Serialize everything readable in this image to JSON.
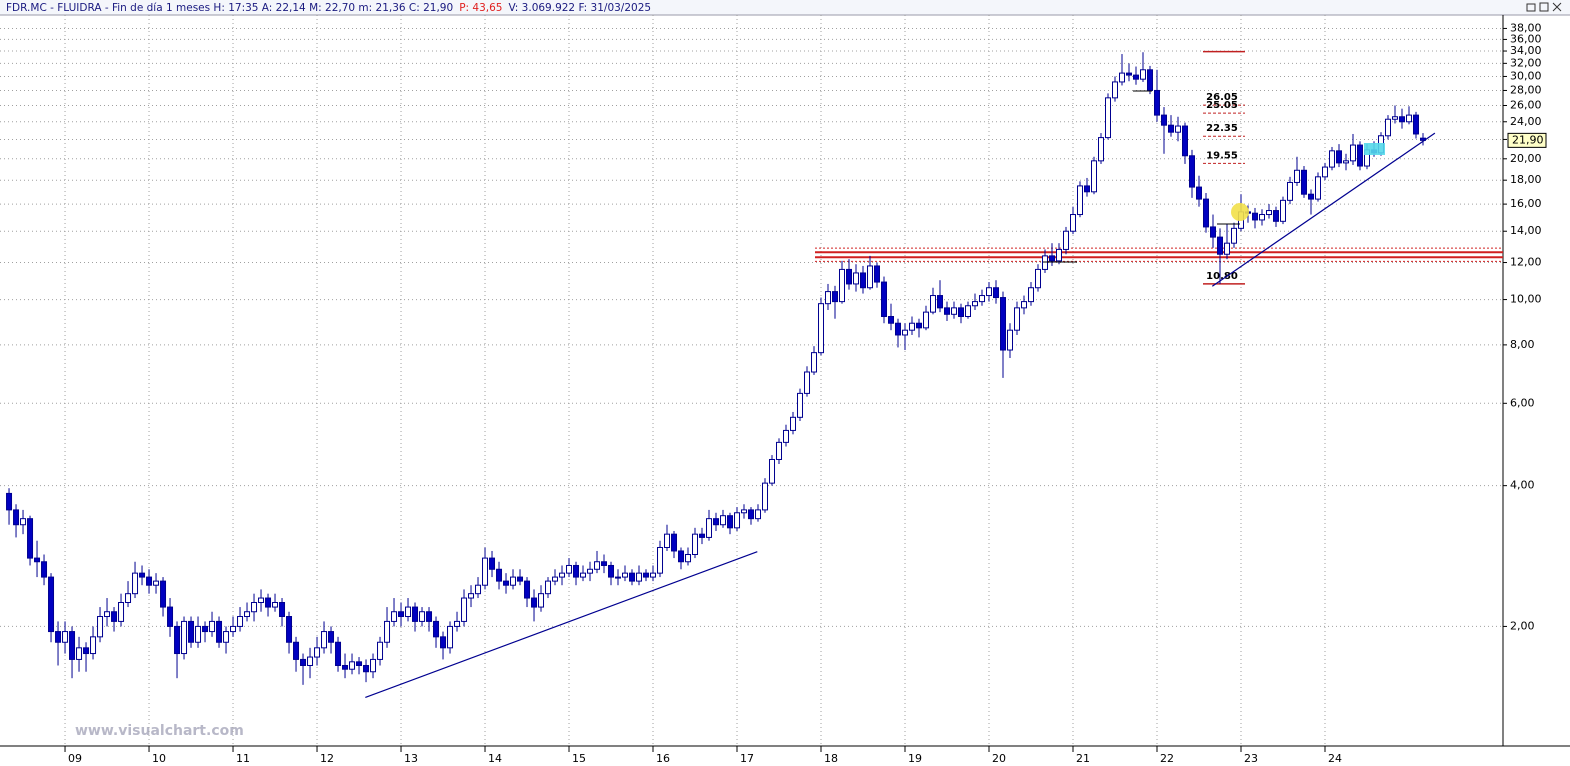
{
  "chart_data": {
    "type": "candlestick",
    "header": [
      "FDR.MC - FLUIDRA - Fin de día 1 meses  H: 17:35  A: 22,14  M: 22,70  m: 21,36  C: 21,90",
      "P: 43,65",
      "V: 3.069.922  F: 31/03/2025"
    ],
    "watermark": "www.visualchart.com",
    "last_label": "21,90",
    "log_scale": true,
    "grid": true,
    "up_color": "#ffffff",
    "down_color": "#0000c0",
    "line_color": "#000090",
    "ylim": [
      1.11,
      40.6
    ],
    "yticks": [
      {
        "value": 2,
        "label": "2,00"
      },
      {
        "value": 4,
        "label": "4,00"
      },
      {
        "value": 6,
        "label": "6,00"
      },
      {
        "value": 8,
        "label": "8,00"
      },
      {
        "value": 10,
        "label": "10,00"
      },
      {
        "value": 12,
        "label": "12,00"
      },
      {
        "value": 14,
        "label": "14,00"
      },
      {
        "value": 16,
        "label": "16,00"
      },
      {
        "value": 18,
        "label": "18,00"
      },
      {
        "value": 20,
        "label": "20,00"
      },
      {
        "value": 22,
        "label": "22,00"
      },
      {
        "value": 24,
        "label": "24,00"
      },
      {
        "value": 26,
        "label": "26,00"
      },
      {
        "value": 28,
        "label": "28,00"
      },
      {
        "value": 30,
        "label": "30,00"
      },
      {
        "value": 32,
        "label": "32,00"
      },
      {
        "value": 34,
        "label": "34,00"
      },
      {
        "value": 36,
        "label": "36,00"
      },
      {
        "value": 38,
        "label": "38,00"
      }
    ],
    "xlim": [
      -1.29,
      213.43
    ],
    "xticks": [
      {
        "value": 8,
        "label": "09"
      },
      {
        "value": 20,
        "label": "10"
      },
      {
        "value": 32,
        "label": "11"
      },
      {
        "value": 44,
        "label": "12"
      },
      {
        "value": 56,
        "label": "13"
      },
      {
        "value": 68,
        "label": "14"
      },
      {
        "value": 80,
        "label": "15"
      },
      {
        "value": 92,
        "label": "16"
      },
      {
        "value": 104,
        "label": "17"
      },
      {
        "value": 116,
        "label": "18"
      },
      {
        "value": 128,
        "label": "19"
      },
      {
        "value": 140,
        "label": "20"
      },
      {
        "value": 152,
        "label": "21"
      },
      {
        "value": 164,
        "label": "22"
      },
      {
        "value": 176,
        "label": "23"
      },
      {
        "value": 188,
        "label": "24"
      }
    ],
    "ohlc": [
      [
        3.85,
        3.95,
        3.3,
        3.55
      ],
      [
        3.55,
        3.65,
        3.1,
        3.3
      ],
      [
        3.3,
        3.55,
        3.15,
        3.4
      ],
      [
        3.4,
        3.45,
        2.7,
        2.8
      ],
      [
        2.8,
        3.05,
        2.55,
        2.75
      ],
      [
        2.75,
        2.85,
        2.45,
        2.55
      ],
      [
        2.55,
        2.6,
        1.85,
        1.95
      ],
      [
        1.95,
        2.05,
        1.65,
        1.85
      ],
      [
        1.85,
        2.05,
        1.75,
        1.95
      ],
      [
        1.95,
        2.0,
        1.55,
        1.7
      ],
      [
        1.7,
        1.9,
        1.6,
        1.8
      ],
      [
        1.8,
        1.85,
        1.6,
        1.75
      ],
      [
        1.75,
        2.0,
        1.7,
        1.9
      ],
      [
        1.9,
        2.2,
        1.85,
        2.1
      ],
      [
        2.1,
        2.3,
        2.0,
        2.15
      ],
      [
        2.15,
        2.2,
        1.95,
        2.05
      ],
      [
        2.05,
        2.35,
        2.0,
        2.25
      ],
      [
        2.25,
        2.5,
        2.2,
        2.35
      ],
      [
        2.35,
        2.75,
        2.3,
        2.6
      ],
      [
        2.6,
        2.7,
        2.45,
        2.55
      ],
      [
        2.55,
        2.65,
        2.35,
        2.45
      ],
      [
        2.45,
        2.6,
        2.35,
        2.5
      ],
      [
        2.5,
        2.55,
        2.1,
        2.2
      ],
      [
        2.2,
        2.3,
        1.9,
        2.0
      ],
      [
        2.0,
        2.05,
        1.55,
        1.75
      ],
      [
        1.75,
        2.1,
        1.7,
        2.05
      ],
      [
        2.05,
        2.1,
        1.8,
        1.85
      ],
      [
        1.85,
        2.1,
        1.8,
        2.0
      ],
      [
        2.0,
        2.05,
        1.85,
        1.95
      ],
      [
        1.95,
        2.15,
        1.9,
        2.05
      ],
      [
        2.05,
        2.1,
        1.8,
        1.85
      ],
      [
        1.85,
        2.0,
        1.75,
        1.95
      ],
      [
        1.95,
        2.1,
        1.9,
        2.0
      ],
      [
        2.0,
        2.2,
        1.95,
        2.1
      ],
      [
        2.1,
        2.25,
        2.05,
        2.15
      ],
      [
        2.15,
        2.35,
        2.05,
        2.25
      ],
      [
        2.25,
        2.4,
        2.15,
        2.3
      ],
      [
        2.3,
        2.35,
        2.1,
        2.2
      ],
      [
        2.2,
        2.35,
        2.15,
        2.25
      ],
      [
        2.25,
        2.3,
        2.0,
        2.1
      ],
      [
        2.1,
        2.15,
        1.75,
        1.85
      ],
      [
        1.85,
        1.9,
        1.6,
        1.7
      ],
      [
        1.7,
        1.75,
        1.5,
        1.65
      ],
      [
        1.65,
        1.8,
        1.55,
        1.72
      ],
      [
        1.72,
        1.9,
        1.65,
        1.8
      ],
      [
        1.8,
        2.05,
        1.75,
        1.95
      ],
      [
        1.95,
        2.0,
        1.75,
        1.85
      ],
      [
        1.85,
        1.9,
        1.6,
        1.65
      ],
      [
        1.65,
        1.75,
        1.55,
        1.62
      ],
      [
        1.62,
        1.75,
        1.58,
        1.68
      ],
      [
        1.68,
        1.72,
        1.58,
        1.65
      ],
      [
        1.65,
        1.7,
        1.52,
        1.6
      ],
      [
        1.6,
        1.75,
        1.55,
        1.7
      ],
      [
        1.7,
        1.9,
        1.65,
        1.85
      ],
      [
        1.85,
        2.2,
        1.8,
        2.05
      ],
      [
        2.05,
        2.3,
        2.0,
        2.15
      ],
      [
        2.15,
        2.25,
        2.0,
        2.1
      ],
      [
        2.1,
        2.3,
        2.05,
        2.2
      ],
      [
        2.2,
        2.25,
        1.95,
        2.05
      ],
      [
        2.05,
        2.2,
        2.0,
        2.15
      ],
      [
        2.15,
        2.2,
        1.95,
        2.05
      ],
      [
        2.05,
        2.1,
        1.8,
        1.9
      ],
      [
        1.9,
        1.95,
        1.7,
        1.8
      ],
      [
        1.8,
        2.05,
        1.75,
        2.0
      ],
      [
        2.0,
        2.15,
        1.95,
        2.05
      ],
      [
        2.05,
        2.4,
        2.0,
        2.3
      ],
      [
        2.3,
        2.45,
        2.2,
        2.35
      ],
      [
        2.35,
        2.55,
        2.3,
        2.45
      ],
      [
        2.45,
        2.95,
        2.4,
        2.8
      ],
      [
        2.8,
        2.9,
        2.55,
        2.65
      ],
      [
        2.65,
        2.75,
        2.4,
        2.5
      ],
      [
        2.5,
        2.6,
        2.35,
        2.45
      ],
      [
        2.45,
        2.65,
        2.4,
        2.55
      ],
      [
        2.55,
        2.65,
        2.45,
        2.5
      ],
      [
        2.5,
        2.55,
        2.2,
        2.3
      ],
      [
        2.3,
        2.4,
        2.05,
        2.2
      ],
      [
        2.2,
        2.45,
        2.15,
        2.35
      ],
      [
        2.35,
        2.55,
        2.3,
        2.5
      ],
      [
        2.5,
        2.65,
        2.45,
        2.55
      ],
      [
        2.55,
        2.7,
        2.45,
        2.6
      ],
      [
        2.6,
        2.8,
        2.55,
        2.7
      ],
      [
        2.7,
        2.75,
        2.45,
        2.55
      ],
      [
        2.55,
        2.7,
        2.5,
        2.6
      ],
      [
        2.6,
        2.75,
        2.5,
        2.65
      ],
      [
        2.65,
        2.9,
        2.6,
        2.75
      ],
      [
        2.75,
        2.85,
        2.6,
        2.7
      ],
      [
        2.7,
        2.75,
        2.45,
        2.55
      ],
      [
        2.55,
        2.65,
        2.45,
        2.55
      ],
      [
        2.55,
        2.7,
        2.5,
        2.6
      ],
      [
        2.6,
        2.65,
        2.45,
        2.5
      ],
      [
        2.5,
        2.7,
        2.45,
        2.6
      ],
      [
        2.6,
        2.65,
        2.5,
        2.55
      ],
      [
        2.55,
        2.7,
        2.5,
        2.6
      ],
      [
        2.6,
        3.05,
        2.55,
        2.95
      ],
      [
        2.95,
        3.3,
        2.9,
        3.15
      ],
      [
        3.15,
        3.2,
        2.8,
        2.9
      ],
      [
        2.9,
        2.95,
        2.65,
        2.75
      ],
      [
        2.75,
        2.95,
        2.7,
        2.85
      ],
      [
        2.85,
        3.25,
        2.8,
        3.15
      ],
      [
        3.15,
        3.25,
        3.0,
        3.1
      ],
      [
        3.1,
        3.55,
        3.05,
        3.4
      ],
      [
        3.4,
        3.5,
        3.2,
        3.3
      ],
      [
        3.3,
        3.55,
        3.25,
        3.45
      ],
      [
        3.45,
        3.5,
        3.15,
        3.25
      ],
      [
        3.25,
        3.6,
        3.2,
        3.5
      ],
      [
        3.5,
        3.65,
        3.4,
        3.55
      ],
      [
        3.55,
        3.6,
        3.3,
        3.4
      ],
      [
        3.4,
        3.65,
        3.35,
        3.55
      ],
      [
        3.55,
        4.15,
        3.5,
        4.05
      ],
      [
        4.05,
        4.65,
        4.0,
        4.55
      ],
      [
        4.55,
        5.05,
        4.45,
        4.95
      ],
      [
        4.95,
        5.4,
        4.85,
        5.25
      ],
      [
        5.25,
        5.75,
        5.15,
        5.6
      ],
      [
        5.6,
        6.45,
        5.5,
        6.3
      ],
      [
        6.3,
        7.2,
        6.2,
        7.0
      ],
      [
        7.0,
        7.95,
        6.9,
        7.7
      ],
      [
        7.7,
        10.1,
        7.6,
        9.8
      ],
      [
        9.8,
        10.8,
        9.5,
        10.4
      ],
      [
        10.4,
        10.7,
        9.1,
        9.9
      ],
      [
        9.9,
        12.1,
        9.8,
        11.6
      ],
      [
        11.6,
        12.2,
        10.5,
        10.8
      ],
      [
        10.8,
        11.9,
        10.4,
        11.4
      ],
      [
        11.4,
        11.8,
        10.3,
        10.6
      ],
      [
        10.6,
        12.4,
        10.5,
        11.8
      ],
      [
        11.8,
        12.0,
        10.6,
        10.9
      ],
      [
        10.9,
        11.2,
        8.9,
        9.2
      ],
      [
        9.2,
        9.8,
        8.6,
        8.9
      ],
      [
        8.9,
        9.1,
        7.9,
        8.4
      ],
      [
        8.4,
        8.9,
        7.8,
        8.6
      ],
      [
        8.6,
        9.2,
        8.4,
        8.9
      ],
      [
        8.9,
        9.1,
        8.3,
        8.7
      ],
      [
        8.7,
        9.7,
        8.6,
        9.4
      ],
      [
        9.4,
        10.6,
        9.3,
        10.2
      ],
      [
        10.2,
        11.0,
        9.4,
        9.6
      ],
      [
        9.6,
        9.9,
        9.0,
        9.3
      ],
      [
        9.3,
        9.9,
        9.1,
        9.6
      ],
      [
        9.6,
        9.8,
        8.9,
        9.2
      ],
      [
        9.2,
        9.9,
        9.1,
        9.7
      ],
      [
        9.7,
        10.3,
        9.5,
        9.9
      ],
      [
        9.9,
        10.5,
        9.7,
        10.2
      ],
      [
        10.2,
        10.9,
        9.9,
        10.6
      ],
      [
        10.6,
        11.0,
        9.8,
        10.1
      ],
      [
        10.1,
        10.4,
        6.8,
        7.8
      ],
      [
        7.8,
        8.9,
        7.5,
        8.6
      ],
      [
        8.6,
        9.9,
        8.4,
        9.6
      ],
      [
        9.6,
        10.2,
        9.3,
        9.9
      ],
      [
        9.9,
        10.9,
        9.7,
        10.6
      ],
      [
        10.6,
        11.9,
        10.4,
        11.6
      ],
      [
        11.6,
        12.8,
        11.4,
        12.4
      ],
      [
        12.4,
        13.2,
        11.8,
        12.1
      ],
      [
        12.1,
        13.2,
        11.9,
        12.8
      ],
      [
        12.8,
        14.3,
        12.5,
        14.0
      ],
      [
        14.0,
        15.8,
        13.8,
        15.2
      ],
      [
        15.2,
        17.9,
        15.0,
        17.5
      ],
      [
        17.5,
        18.2,
        16.6,
        17.0
      ],
      [
        17.0,
        20.2,
        16.8,
        19.8
      ],
      [
        19.8,
        22.7,
        19.5,
        22.2
      ],
      [
        22.2,
        27.6,
        22.0,
        27.0
      ],
      [
        27.0,
        30.0,
        26.5,
        29.2
      ],
      [
        29.2,
        33.5,
        28.7,
        30.5
      ],
      [
        30.5,
        32.0,
        29.3,
        30.2
      ],
      [
        30.2,
        31.5,
        28.8,
        29.6
      ],
      [
        29.6,
        33.8,
        29.2,
        31.0
      ],
      [
        31.0,
        31.6,
        27.5,
        28.0
      ],
      [
        28.0,
        31.0,
        24.0,
        24.8
      ],
      [
        24.8,
        25.8,
        20.5,
        23.6
      ],
      [
        23.6,
        24.8,
        22.3,
        22.8
      ],
      [
        22.8,
        24.6,
        21.8,
        23.5
      ],
      [
        23.5,
        23.9,
        19.5,
        20.3
      ],
      [
        20.3,
        20.9,
        16.5,
        17.4
      ],
      [
        17.4,
        18.4,
        15.8,
        16.4
      ],
      [
        16.4,
        16.9,
        13.9,
        14.3
      ],
      [
        14.3,
        15.2,
        12.9,
        13.6
      ],
      [
        13.6,
        14.2,
        10.8,
        12.5
      ],
      [
        12.5,
        14.5,
        12.2,
        13.2
      ],
      [
        13.2,
        14.6,
        12.9,
        14.2
      ],
      [
        14.2,
        16.8,
        14.0,
        15.4
      ],
      [
        15.4,
        15.9,
        14.6,
        15.3
      ],
      [
        15.3,
        15.7,
        14.2,
        14.8
      ],
      [
        14.8,
        15.6,
        14.4,
        15.2
      ],
      [
        15.2,
        16.0,
        14.9,
        15.5
      ],
      [
        15.5,
        15.8,
        14.3,
        14.7
      ],
      [
        14.7,
        16.6,
        14.5,
        16.3
      ],
      [
        16.3,
        18.3,
        16.0,
        17.8
      ],
      [
        17.8,
        20.2,
        17.5,
        18.9
      ],
      [
        18.9,
        19.3,
        16.5,
        16.8
      ],
      [
        16.8,
        17.2,
        15.2,
        16.4
      ],
      [
        16.4,
        18.7,
        16.2,
        18.3
      ],
      [
        18.3,
        19.6,
        18.0,
        19.2
      ],
      [
        19.2,
        21.2,
        18.9,
        20.8
      ],
      [
        20.8,
        21.5,
        19.2,
        19.6
      ],
      [
        19.6,
        20.5,
        18.9,
        19.8
      ],
      [
        19.8,
        22.6,
        19.4,
        21.4
      ],
      [
        21.4,
        21.8,
        18.9,
        19.3
      ],
      [
        19.3,
        21.5,
        19.0,
        20.9
      ],
      [
        20.9,
        21.8,
        20.2,
        20.6
      ],
      [
        20.6,
        22.8,
        20.3,
        22.4
      ],
      [
        22.4,
        24.8,
        22.0,
        24.3
      ],
      [
        24.3,
        26.0,
        23.8,
        24.6
      ],
      [
        24.6,
        25.6,
        23.2,
        24.0
      ],
      [
        24.0,
        25.9,
        23.7,
        24.8
      ],
      [
        24.8,
        25.2,
        22.1,
        22.6
      ],
      [
        22.14,
        22.7,
        21.36,
        21.9
      ]
    ],
    "support_lines": [
      {
        "value": 12.88,
        "style": "dotted"
      },
      {
        "value": 12.62,
        "style": "solid"
      },
      {
        "value": 12.32,
        "style": "solid"
      },
      {
        "value": 12.07,
        "style": "dotted"
      }
    ],
    "levels": [
      {
        "value": 33.9
      },
      {
        "value": 26.05,
        "label": "26.05"
      },
      {
        "value": 25.05,
        "label": "25.05"
      },
      {
        "value": 22.35,
        "label": "22.35"
      },
      {
        "value": 19.55,
        "label": "19.55"
      },
      {
        "value": 10.8,
        "label": "10.80"
      }
    ],
    "trendlines": [
      {
        "x": [
          50.9,
          106.9
        ],
        "y": [
          1.41,
          2.89
        ]
      },
      {
        "x": [
          171.9,
          203.7
        ],
        "y": [
          10.68,
          22.69
        ]
      }
    ]
  }
}
